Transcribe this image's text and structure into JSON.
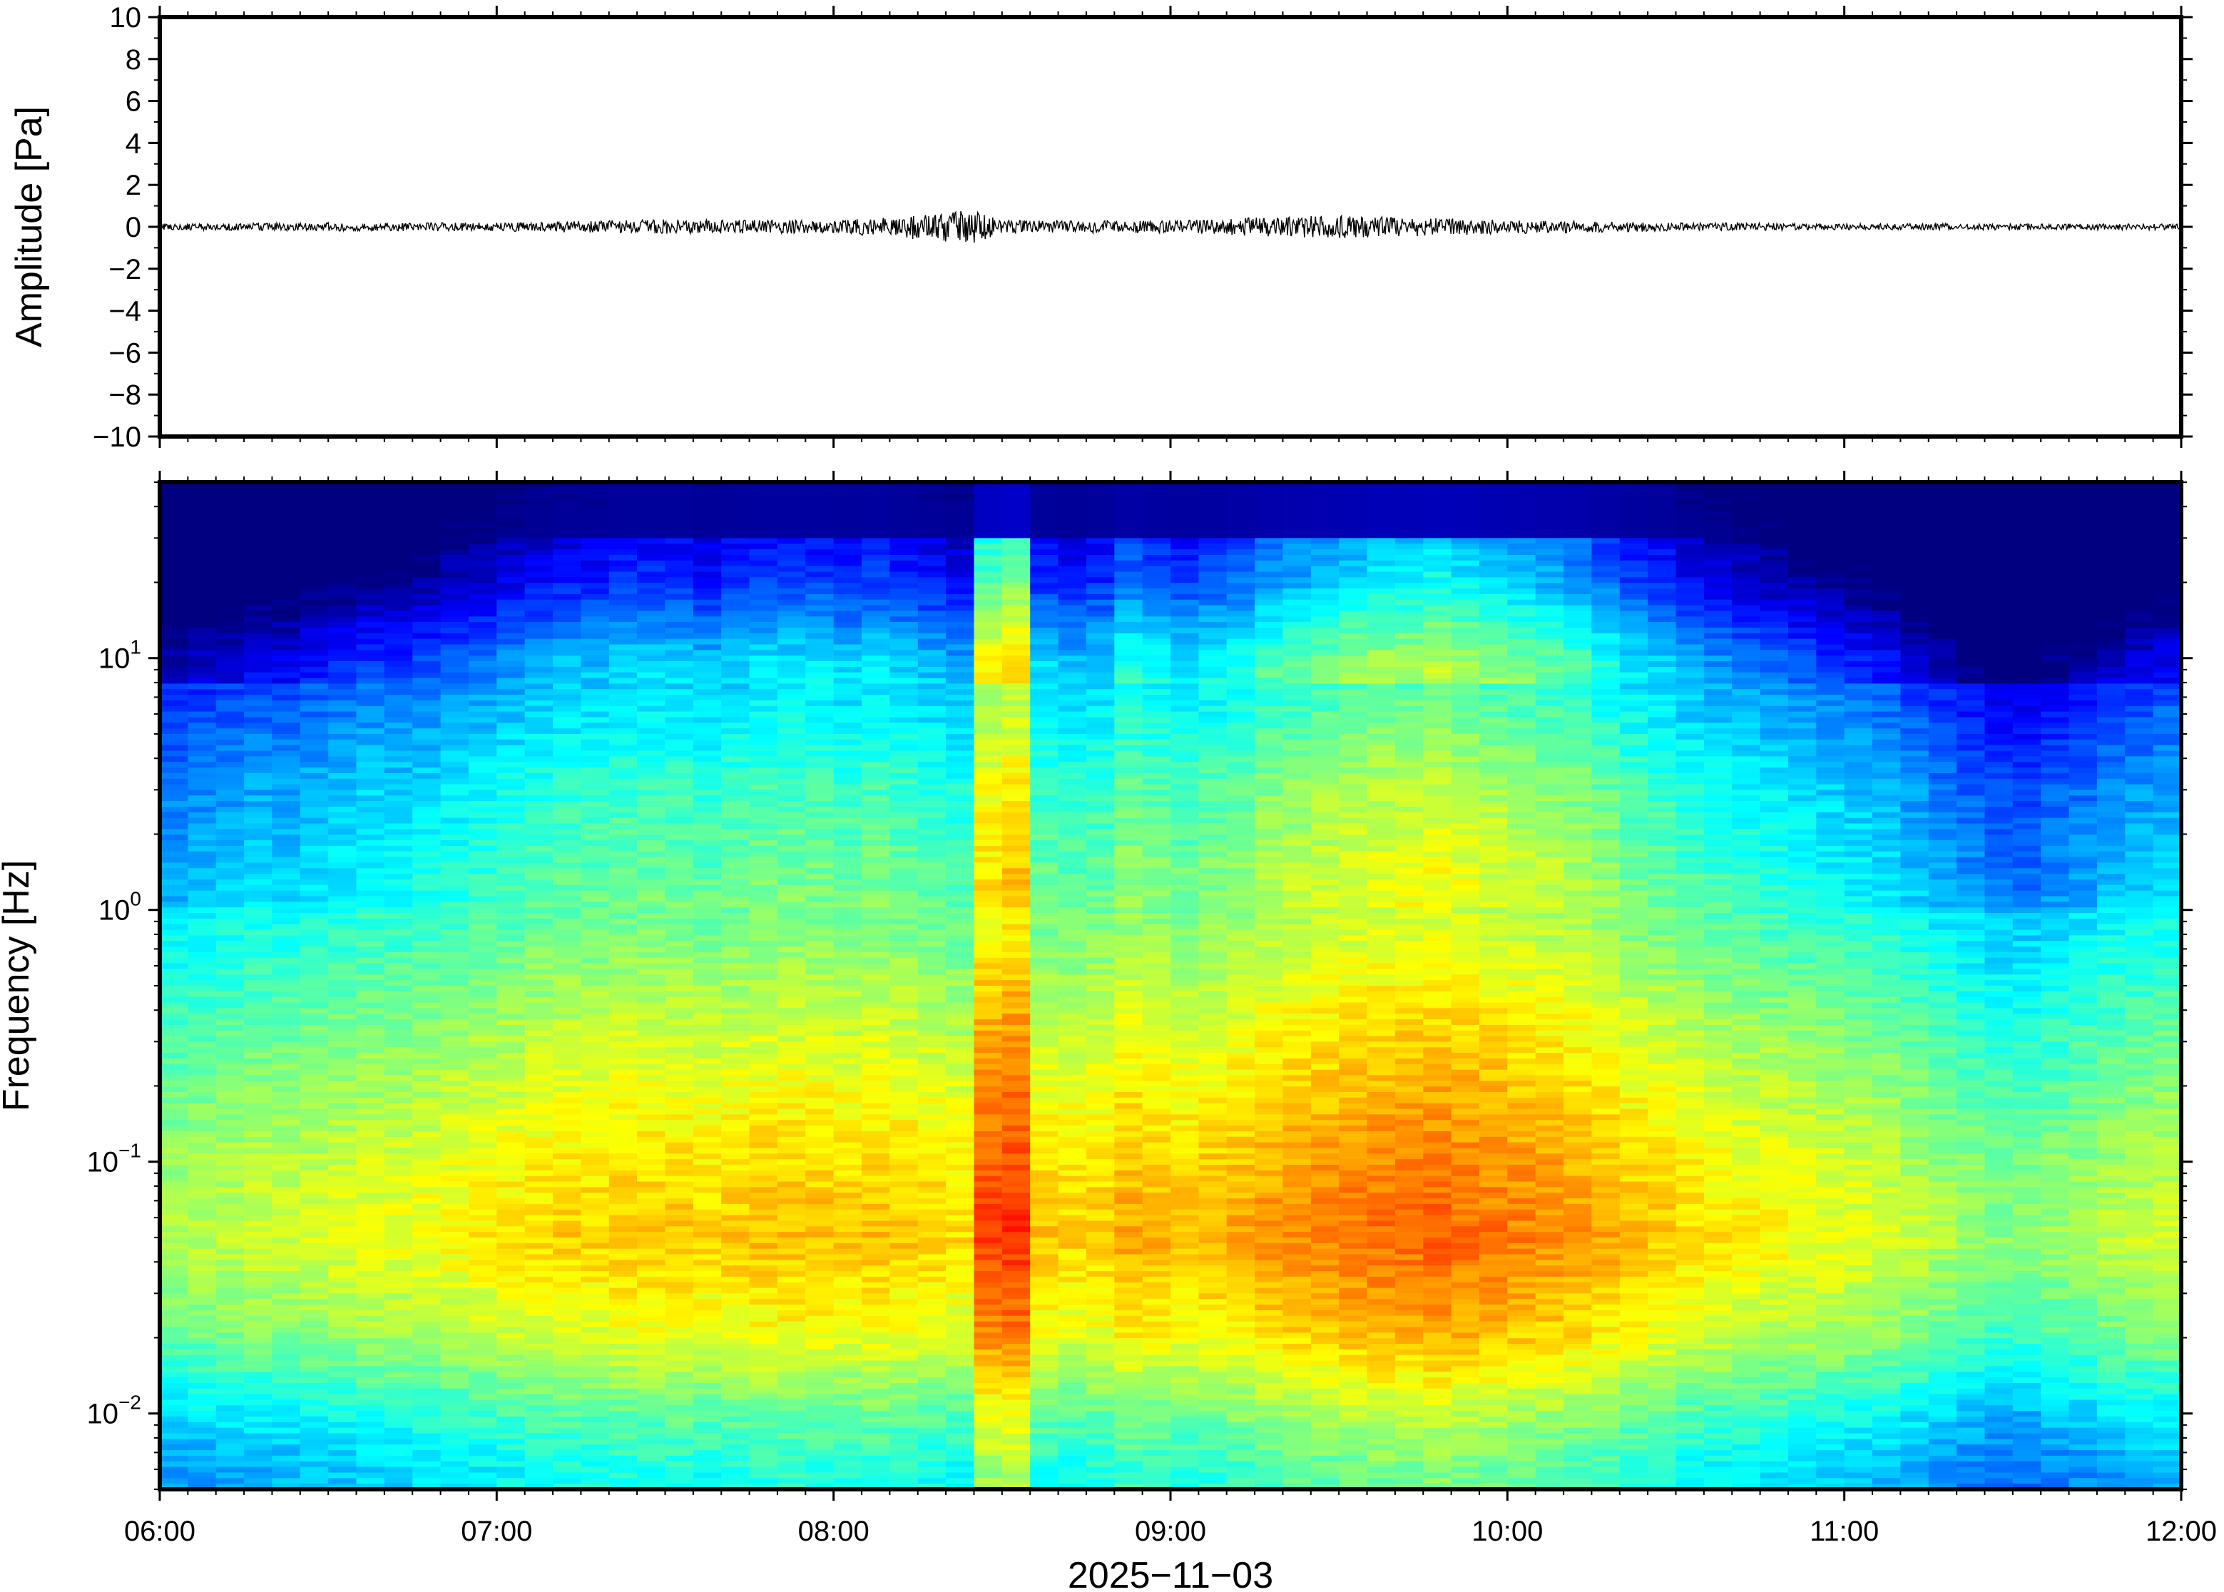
{
  "chart_data": [
    {
      "type": "line",
      "title": "",
      "ylabel": "Amplitude [Pa]",
      "xlabel": "",
      "ylim": [
        -10,
        10
      ],
      "yticks": [
        10,
        8,
        6,
        4,
        2,
        0,
        -2,
        -4,
        -6,
        -8,
        -10
      ],
      "ytick_labels": [
        "10",
        "8",
        "6",
        "4",
        "2",
        "0",
        "−2",
        "−4",
        "−6",
        "−8",
        "−10"
      ],
      "xlim": [
        "06:00",
        "12:00"
      ],
      "grid": false,
      "series": [
        {
          "x": [
            "06:00",
            "06:30",
            "07:00",
            "07:30",
            "08:00",
            "08:25",
            "08:30",
            "09:00",
            "09:15",
            "09:30",
            "09:45",
            "10:00",
            "10:30",
            "11:00",
            "11:30",
            "12:00"
          ],
          "envelope_pa": [
            0.15,
            0.2,
            0.2,
            0.35,
            0.3,
            0.8,
            0.3,
            0.3,
            0.45,
            0.55,
            0.45,
            0.35,
            0.2,
            0.15,
            0.15,
            0.15
          ]
        }
      ],
      "color": "#000000"
    },
    {
      "type": "heatmap",
      "title": "",
      "ylabel": "Frequency [Hz]",
      "xlabel": "2025−11−03",
      "yscale": "log",
      "ylim": [
        0.005,
        50
      ],
      "yticks": [
        {
          "base": "10",
          "exp": "1"
        },
        {
          "base": "10",
          "exp": "0"
        },
        {
          "base": "10",
          "exp": "−1"
        },
        {
          "base": "10",
          "exp": "−2"
        }
      ],
      "xlim": [
        "06:00",
        "12:00"
      ],
      "xtick_labels": [
        "06:00",
        "07:00",
        "08:00",
        "09:00",
        "10:00",
        "11:00",
        "12:00"
      ],
      "colormap": "jet",
      "colors": {
        "low": "#000080",
        "mid": "#7fff7f",
        "high": "#ff4000"
      },
      "time_columns": 72,
      "column_intensity": [
        0.42,
        0.43,
        0.44,
        0.45,
        0.45,
        0.46,
        0.47,
        0.48,
        0.48,
        0.49,
        0.5,
        0.51,
        0.52,
        0.53,
        0.54,
        0.54,
        0.55,
        0.55,
        0.55,
        0.54,
        0.55,
        0.56,
        0.56,
        0.56,
        0.55,
        0.56,
        0.55,
        0.54,
        0.53,
        0.68,
        0.7,
        0.55,
        0.54,
        0.55,
        0.58,
        0.57,
        0.56,
        0.57,
        0.58,
        0.6,
        0.61,
        0.62,
        0.63,
        0.64,
        0.64,
        0.65,
        0.64,
        0.63,
        0.62,
        0.61,
        0.6,
        0.58,
        0.56,
        0.55,
        0.53,
        0.52,
        0.51,
        0.5,
        0.49,
        0.48,
        0.47,
        0.46,
        0.44,
        0.42,
        0.4,
        0.38,
        0.38,
        0.4,
        0.41,
        0.43,
        0.44,
        0.45
      ],
      "frequency_profile": [
        {
          "hz": 0.006,
          "intensity": 0.38
        },
        {
          "hz": 0.01,
          "intensity": 0.45
        },
        {
          "hz": 0.02,
          "intensity": 0.58
        },
        {
          "hz": 0.05,
          "intensity": 0.66
        },
        {
          "hz": 0.1,
          "intensity": 0.63
        },
        {
          "hz": 0.3,
          "intensity": 0.56
        },
        {
          "hz": 1,
          "intensity": 0.46
        },
        {
          "hz": 3,
          "intensity": 0.4
        },
        {
          "hz": 10,
          "intensity": 0.28
        },
        {
          "hz": 20,
          "intensity": 0.12
        },
        {
          "hz": 50,
          "intensity": 0.0
        }
      ]
    }
  ]
}
